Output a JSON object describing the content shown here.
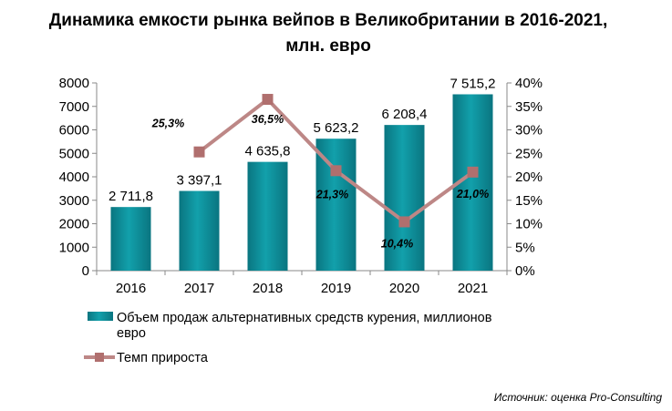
{
  "title_line1": "Динамика емкости рынка вейпов в Великобритании в 2016-2021,",
  "title_line2": "млн. евро",
  "source": "Источник: оценка Pro-Consulting",
  "colors": {
    "bar": "#0e8d99",
    "bar_dark": "#0a6f78",
    "line": "#bd8786",
    "marker": "#b06f6e"
  },
  "chart_data": {
    "type": "bar",
    "categories": [
      "2016",
      "2017",
      "2018",
      "2019",
      "2020",
      "2021"
    ],
    "series": [
      {
        "name": "Объем продаж альтернативных средств курения, миллионов евро",
        "legend_lines": [
          "Объем продаж альтернативных средств курения, миллионов",
          "евро"
        ],
        "type": "bar",
        "axis": "left",
        "values": [
          2711.8,
          3397.1,
          4635.8,
          5623.2,
          6208.4,
          7515.2
        ],
        "labels": [
          "2 711,8",
          "3 397,1",
          "4 635,8",
          "5 623,2",
          "6 208,4",
          "7 515,2"
        ]
      },
      {
        "name": "Темп прироста",
        "type": "line",
        "axis": "right",
        "values": [
          null,
          25.3,
          36.5,
          21.3,
          10.4,
          21.0
        ],
        "labels": [
          null,
          "25,3%",
          "36,5%",
          "21,3%",
          "10,4%",
          "21,0%"
        ]
      }
    ],
    "y_left": {
      "range": [
        0,
        8000
      ],
      "ticks": [
        "0",
        "1000",
        "2000",
        "3000",
        "4000",
        "5000",
        "6000",
        "7000",
        "8000"
      ]
    },
    "y_right": {
      "range": [
        0,
        40
      ],
      "ticks": [
        "0%",
        "5%",
        "10%",
        "15%",
        "20%",
        "25%",
        "30%",
        "35%",
        "40%"
      ]
    },
    "grid": false,
    "legend_position": "bottom-left"
  }
}
